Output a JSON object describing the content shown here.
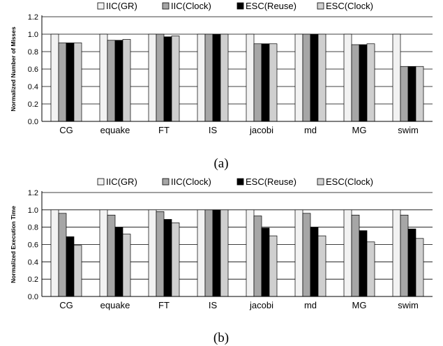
{
  "chart_data": [
    {
      "type": "bar",
      "caption": "(a)",
      "ylabel": "Normalized Number of Misses",
      "xlabel": "",
      "ylim": [
        0,
        1.2
      ],
      "yticks": [
        "0.0",
        "0.2",
        "0.4",
        "0.6",
        "0.8",
        "1.0",
        "1.2"
      ],
      "grid": true,
      "legend_position": "top",
      "categories": [
        "CG",
        "equake",
        "FT",
        "IS",
        "jacobi",
        "md",
        "MG",
        "swim"
      ],
      "series": [
        {
          "name": "IIC(GR)",
          "color": "#f2f2f2",
          "values": [
            1.0,
            1.0,
            1.0,
            1.0,
            1.0,
            1.0,
            1.0,
            1.0
          ]
        },
        {
          "name": "IIC(Clock)",
          "color": "#a6a6a6",
          "values": [
            0.9,
            0.93,
            1.0,
            1.0,
            0.89,
            1.0,
            0.88,
            0.63
          ]
        },
        {
          "name": "ESC(Reuse)",
          "color": "#000000",
          "values": [
            0.9,
            0.93,
            0.97,
            1.0,
            0.89,
            1.0,
            0.88,
            0.63
          ]
        },
        {
          "name": "ESC(Clock)",
          "color": "#cfcfcf",
          "values": [
            0.9,
            0.94,
            0.98,
            1.0,
            0.89,
            1.0,
            0.89,
            0.63
          ]
        }
      ]
    },
    {
      "type": "bar",
      "caption": "(b)",
      "ylabel": "Normalized Execution Time",
      "xlabel": "",
      "ylim": [
        0,
        1.2
      ],
      "yticks": [
        "0.0",
        "0.2",
        "0.4",
        "0.6",
        "0.8",
        "1.0",
        "1.2"
      ],
      "grid": true,
      "legend_position": "top",
      "categories": [
        "CG",
        "equake",
        "FT",
        "IS",
        "jacobi",
        "md",
        "MG",
        "swim"
      ],
      "series": [
        {
          "name": "IIC(GR)",
          "color": "#f2f2f2",
          "values": [
            1.0,
            1.0,
            1.0,
            1.0,
            1.0,
            1.0,
            1.0,
            1.0
          ]
        },
        {
          "name": "IIC(Clock)",
          "color": "#a6a6a6",
          "values": [
            0.96,
            0.94,
            0.98,
            1.0,
            0.93,
            0.96,
            0.94,
            0.94
          ]
        },
        {
          "name": "ESC(Reuse)",
          "color": "#000000",
          "values": [
            0.69,
            0.8,
            0.89,
            1.0,
            0.79,
            0.8,
            0.76,
            0.78
          ]
        },
        {
          "name": "ESC(Clock)",
          "color": "#cfcfcf",
          "values": [
            0.59,
            0.72,
            0.85,
            1.0,
            0.7,
            0.7,
            0.63,
            0.67
          ]
        }
      ]
    }
  ]
}
